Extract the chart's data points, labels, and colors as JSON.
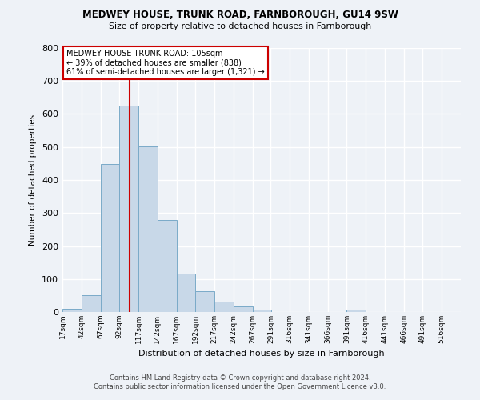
{
  "title": "MEDWEY HOUSE, TRUNK ROAD, FARNBOROUGH, GU14 9SW",
  "subtitle": "Size of property relative to detached houses in Farnborough",
  "xlabel": "Distribution of detached houses by size in Farnborough",
  "ylabel": "Number of detached properties",
  "bar_color": "#c8d8e8",
  "bar_edge_color": "#7aaac8",
  "bin_starts": [
    17,
    42,
    67,
    92,
    117,
    142,
    167,
    192,
    217,
    242,
    267,
    291,
    316,
    341,
    366,
    391,
    416,
    441,
    466,
    491
  ],
  "bar_heights": [
    10,
    52,
    448,
    625,
    503,
    278,
    116,
    62,
    32,
    18,
    8,
    0,
    0,
    0,
    0,
    8,
    0,
    0,
    0,
    0
  ],
  "tick_labels": [
    "17sqm",
    "42sqm",
    "67sqm",
    "92sqm",
    "117sqm",
    "142sqm",
    "167sqm",
    "192sqm",
    "217sqm",
    "242sqm",
    "267sqm",
    "291sqm",
    "316sqm",
    "341sqm",
    "366sqm",
    "391sqm",
    "416sqm",
    "441sqm",
    "466sqm",
    "491sqm",
    "516sqm"
  ],
  "property_line_x": 105,
  "property_line_color": "#cc0000",
  "annotation_line1": "MEDWEY HOUSE TRUNK ROAD: 105sqm",
  "annotation_line2": "← 39% of detached houses are smaller (838)",
  "annotation_line3": "61% of semi-detached houses are larger (1,321) →",
  "ylim": [
    0,
    800
  ],
  "yticks": [
    0,
    100,
    200,
    300,
    400,
    500,
    600,
    700,
    800
  ],
  "footer_line1": "Contains HM Land Registry data © Crown copyright and database right 2024.",
  "footer_line2": "Contains public sector information licensed under the Open Government Licence v3.0.",
  "background_color": "#eef2f7",
  "grid_color": "#ffffff",
  "figsize": [
    6.0,
    5.0
  ],
  "dpi": 100
}
